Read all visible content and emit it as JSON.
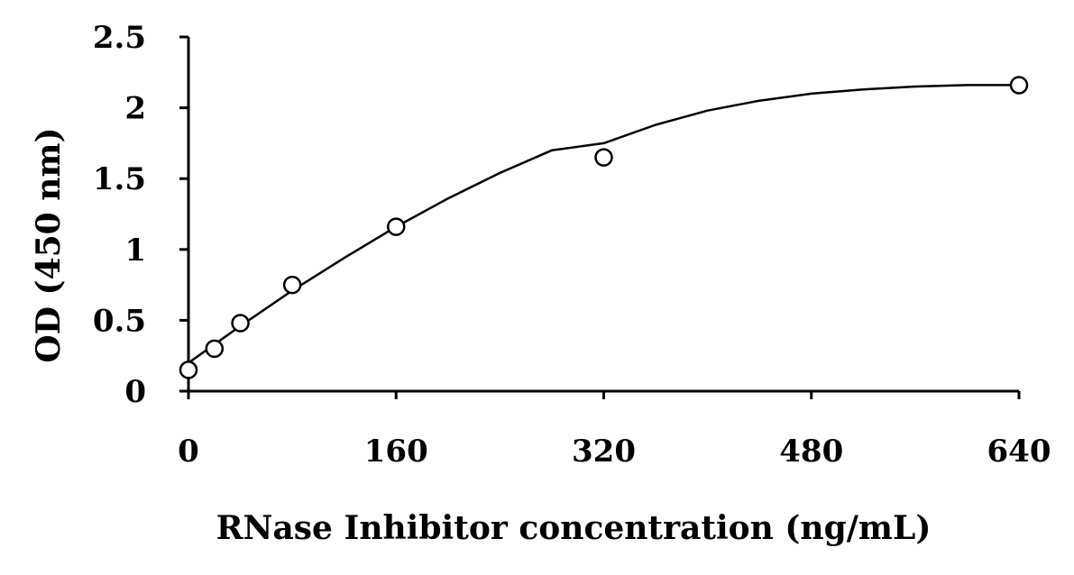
{
  "chart_data": {
    "type": "scatter",
    "title": "",
    "xlabel": "RNase Inhibitor concentration (ng/mL)",
    "ylabel": "OD (450 nm)",
    "xlim": [
      0,
      640
    ],
    "ylim": [
      0,
      2.5
    ],
    "x_ticks": [
      "0",
      "160",
      "320",
      "480",
      "640"
    ],
    "y_ticks": [
      "0",
      "0.5",
      "1",
      "1.5",
      "2",
      "2.5"
    ],
    "grid": false,
    "legend": "none",
    "series": [
      {
        "marker": "open-circle",
        "x": [
          0,
          20,
          40,
          80,
          160,
          320,
          640
        ],
        "y": [
          0.15,
          0.3,
          0.48,
          0.75,
          1.16,
          1.65,
          2.16
        ]
      }
    ],
    "fit_curve": {
      "type": "polynomial-2",
      "x": [
        0,
        40,
        80,
        120,
        160,
        200,
        240,
        280,
        320,
        360,
        400,
        440,
        480,
        520,
        560,
        600,
        640
      ],
      "y": [
        0.2,
        0.46,
        0.71,
        0.94,
        1.16,
        1.36,
        1.54,
        1.7,
        1.75,
        1.88,
        1.98,
        2.05,
        2.1,
        2.13,
        2.15,
        2.16,
        2.16
      ]
    },
    "colors": {
      "axis": "#000000",
      "marker_stroke": "#000000",
      "marker_fill": "#ffffff",
      "curve": "#000000"
    }
  }
}
